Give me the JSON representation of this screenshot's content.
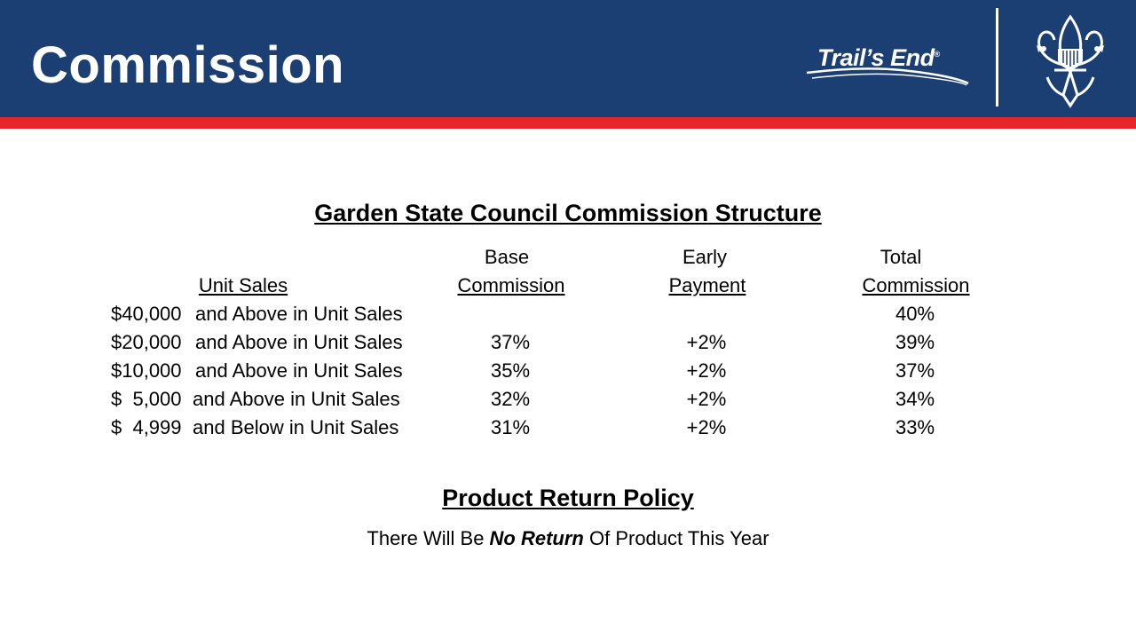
{
  "header": {
    "title": "Commission",
    "brand_name": "Trail’s End",
    "brand_mark": "®",
    "emblem_icon": "fleur-de-lis-emblem-icon",
    "colors": {
      "band": "#1b3e73",
      "accent": "#e8262a",
      "text": "#ffffff"
    }
  },
  "commission": {
    "heading": "Garden State Council Commission Structure",
    "col_headers": {
      "unit_sales": "Unit Sales",
      "base_top": "Base",
      "base_bottom": "Commission",
      "early_top": "Early",
      "early_bottom": "Payment",
      "total_top": "Total",
      "total_bottom": "Commission"
    },
    "rows": [
      {
        "amount": "$40,000",
        "label": "and Above in Unit Sales",
        "base": "",
        "early": "",
        "total": "40%"
      },
      {
        "amount": "$20,000",
        "label": "and Above in Unit Sales",
        "base": "37%",
        "early": "+2%",
        "total": "39%"
      },
      {
        "amount": "$10,000",
        "label": "and Above in Unit Sales",
        "base": "35%",
        "early": "+2%",
        "total": "37%"
      },
      {
        "amount": "$  5,000",
        "label": "and Above in Unit Sales",
        "base": "32%",
        "early": "+2%",
        "total": "34%"
      },
      {
        "amount": "$  4,999",
        "label": "and Below in Unit Sales",
        "base": "31%",
        "early": "+2%",
        "total": "33%"
      }
    ]
  },
  "policy": {
    "heading": "Product Return Policy",
    "text_before": "There Will Be ",
    "text_emphasis": "No Return",
    "text_after": " Of Product This Year"
  }
}
